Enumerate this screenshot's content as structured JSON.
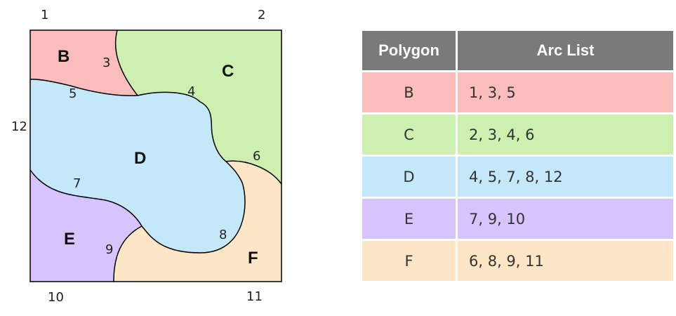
{
  "map": {
    "polygon_labels": {
      "B": "B",
      "C": "C",
      "D": "D",
      "E": "E",
      "F": "F"
    },
    "arc_labels": {
      "a3": "3",
      "a4": "4",
      "a5": "5",
      "a6": "6",
      "a7": "7",
      "a8": "8",
      "a9": "9"
    },
    "corner_labels": {
      "c1": "1",
      "c2": "2",
      "c10": "10",
      "c11": "11",
      "c12": "12"
    }
  },
  "table": {
    "header_polygon": "Polygon",
    "header_arcs": "Arc List",
    "rows": [
      {
        "polygon": "B",
        "arcs": "1, 3, 5",
        "color": "#fbbcbc"
      },
      {
        "polygon": "C",
        "arcs": "2, 3, 4, 6",
        "color": "#cdf0b1"
      },
      {
        "polygon": "D",
        "arcs": "4, 5, 7, 8, 12",
        "color": "#c4e8fa"
      },
      {
        "polygon": "E",
        "arcs": "7, 9, 10",
        "color": "#d8c4fc"
      },
      {
        "polygon": "F",
        "arcs": "6, 8, 9, 11",
        "color": "#fde6c6"
      }
    ]
  },
  "colors": {
    "B": "#fbbcbc",
    "C": "#cdf0b1",
    "D": "#c4e8fa",
    "E": "#d8c4fc",
    "F": "#fde6c6",
    "header": "#7a7a7a"
  }
}
